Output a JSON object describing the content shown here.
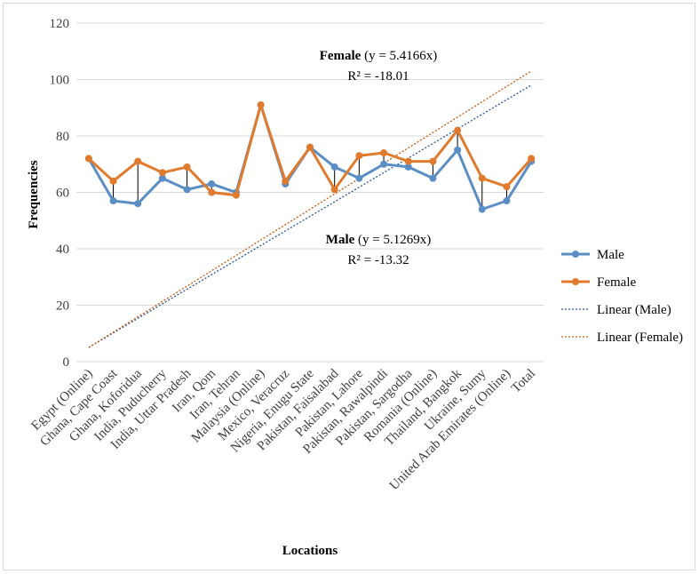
{
  "chart_data": {
    "type": "line",
    "title": "",
    "xlabel": "Locations",
    "ylabel": "Frequencies",
    "ylim": [
      0,
      120
    ],
    "yticks": [
      0,
      20,
      40,
      60,
      80,
      100,
      120
    ],
    "grid": true,
    "legend_position": "right",
    "categories": [
      "Egypt (Online)",
      "Ghana, Cape Coast",
      "Ghana, Koforidua",
      "India, Puducherry",
      "India, Uttar Pradesh",
      "Iran, Qom",
      "Iran, Tehran",
      "Malaysia (Online)",
      "Mexico, Veracruz",
      "Nigeria, Enugu State",
      "Pakistan, Faisalabad",
      "Pakistan, Lahore",
      "Pakistan, Rawalpindi",
      "Pakistan, Sargodha",
      "Romania (Online)",
      "Thailand, Bangkok",
      "Ukraine, Sumy",
      "United Arab Emirates (Online)",
      "Total"
    ],
    "series": [
      {
        "name": "Male",
        "color": "#5b8ec4",
        "values": [
          72,
          57,
          56,
          65,
          61,
          63,
          60,
          91,
          63,
          76,
          69,
          65,
          70,
          69,
          65,
          75,
          54,
          57,
          71
        ]
      },
      {
        "name": "Female",
        "color": "#e07b2e",
        "values": [
          72,
          64,
          71,
          67,
          69,
          60,
          59,
          91,
          64,
          76,
          61,
          73,
          74,
          71,
          71,
          82,
          65,
          62,
          72
        ]
      }
    ],
    "trendlines": [
      {
        "name": "Linear (Male)",
        "color": "#2f5597",
        "start": 5,
        "end": 98
      },
      {
        "name": "Linear (Female)",
        "color": "#c55a11",
        "start": 5,
        "end": 103
      }
    ],
    "annotations": {
      "female": {
        "label": "Female",
        "equation": " (y = 5.4166x)",
        "r2": "R² = -18.01"
      },
      "male": {
        "label": "Male",
        "equation": " (y = 5.1269x)",
        "r2": "R² = -13.32"
      }
    },
    "legend": [
      "Male",
      "Female",
      "Linear (Male)",
      "Linear (Female)"
    ]
  }
}
